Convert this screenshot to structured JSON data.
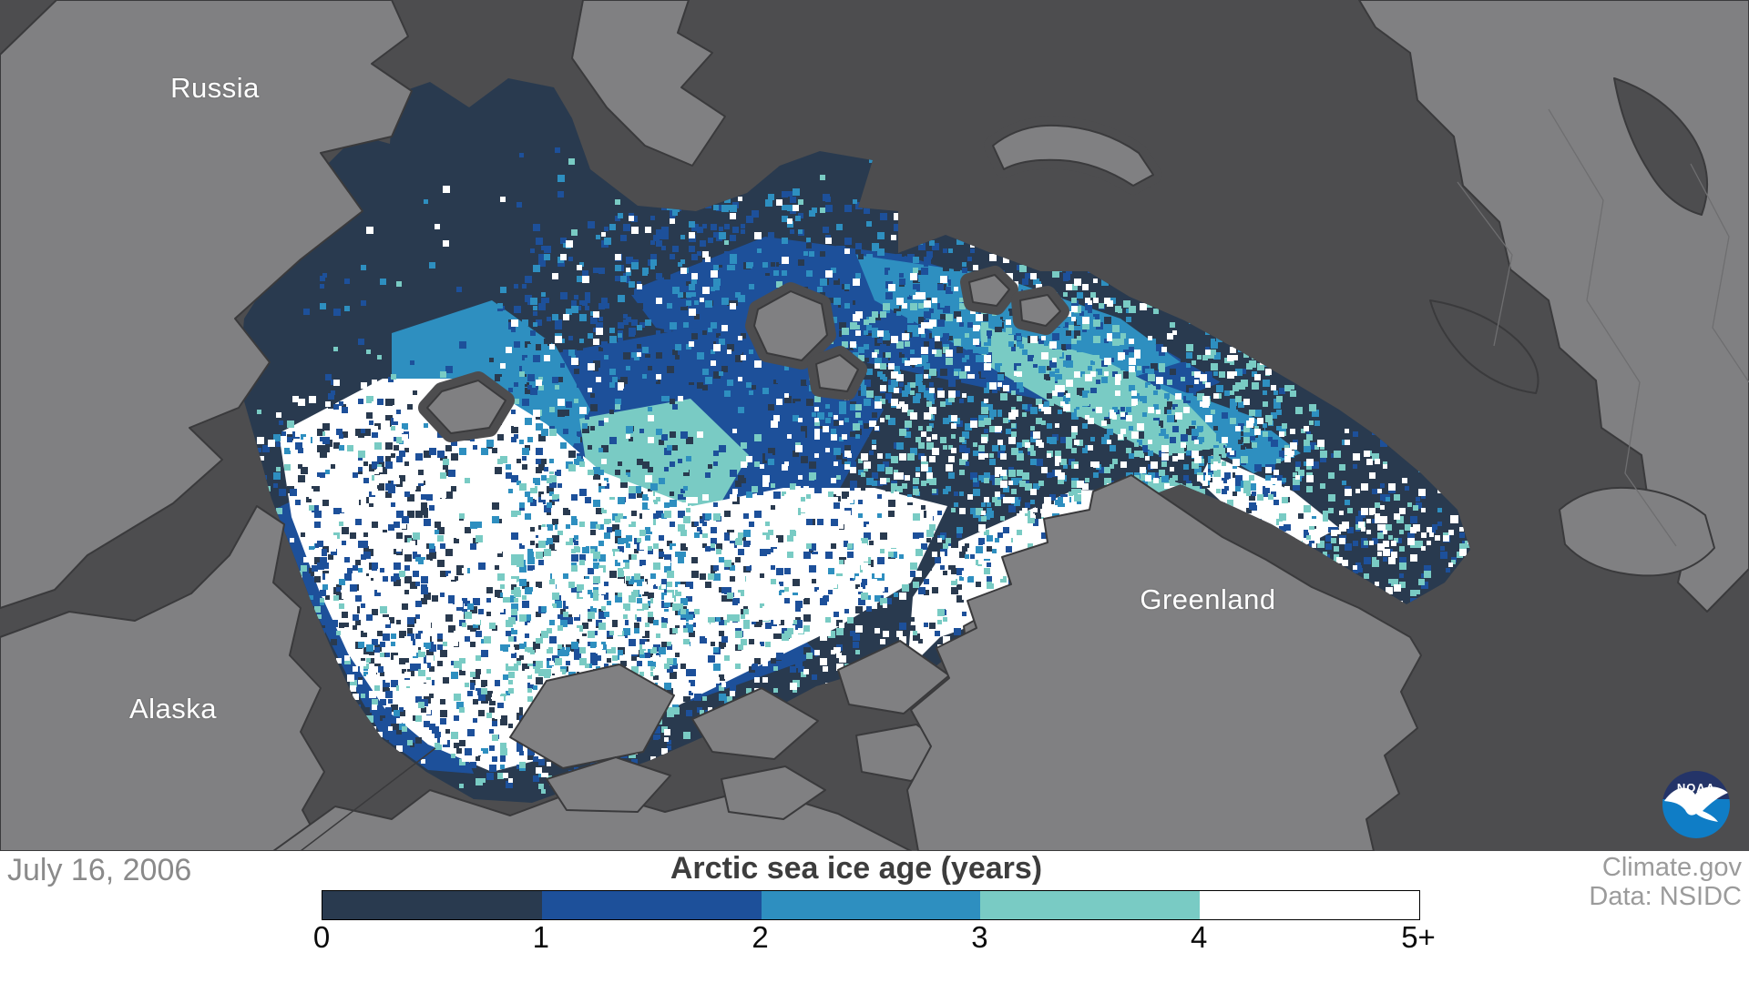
{
  "map": {
    "date": "July 16, 2006",
    "labels": [
      {
        "text": "Russia"
      },
      {
        "text": "Alaska"
      },
      {
        "text": "Greenland"
      }
    ],
    "attribution": {
      "site": "Climate.gov",
      "source": "Data: NSIDC"
    },
    "logo": {
      "text": "NOAA"
    },
    "colors": {
      "ocean": "#4D4D4F",
      "land": "#808082",
      "coastline": "#3A3A3C",
      "country_border": "#6E6E70",
      "logo_top": "#243468",
      "logo_bottom": "#0F7DC6",
      "label_text": "#FFFFFF",
      "date_text": "#8A8A8A",
      "title_text": "#3D3D3D",
      "attribution_text": "#9B9B9B"
    }
  },
  "legend": {
    "title": "Arctic sea ice age (years)",
    "ticks": [
      "0",
      "1",
      "2",
      "3",
      "4",
      "5+"
    ],
    "segments": [
      {
        "label": "0-1 years",
        "color": "#293A4F"
      },
      {
        "label": "1-2 years",
        "color": "#1D509A"
      },
      {
        "label": "2-3 years",
        "color": "#2E8FC0"
      },
      {
        "label": "3-4 years",
        "color": "#79CBC4"
      },
      {
        "label": "4-5+ years",
        "color": "#FFFFFF"
      }
    ]
  },
  "chart_data": {
    "type": "map",
    "title": "Arctic sea ice age (years)",
    "date": "July 16, 2006",
    "region": "Arctic Ocean (polar view)",
    "labeled_places": [
      "Russia",
      "Alaska",
      "Greenland"
    ],
    "colorbar": {
      "orientation": "horizontal",
      "tick_labels": [
        "0",
        "1",
        "2",
        "3",
        "4",
        "5+"
      ],
      "bins": [
        "0-1",
        "1-2",
        "2-3",
        "3-4",
        "4-5+"
      ],
      "bin_colors": [
        "#293A4F",
        "#1D509A",
        "#2E8FC0",
        "#79CBC4",
        "#FFFFFF"
      ],
      "units": "years of sea ice age"
    },
    "attribution": {
      "site": "Climate.gov",
      "data_source": "Data: NSIDC",
      "agency_logo": "NOAA"
    }
  }
}
